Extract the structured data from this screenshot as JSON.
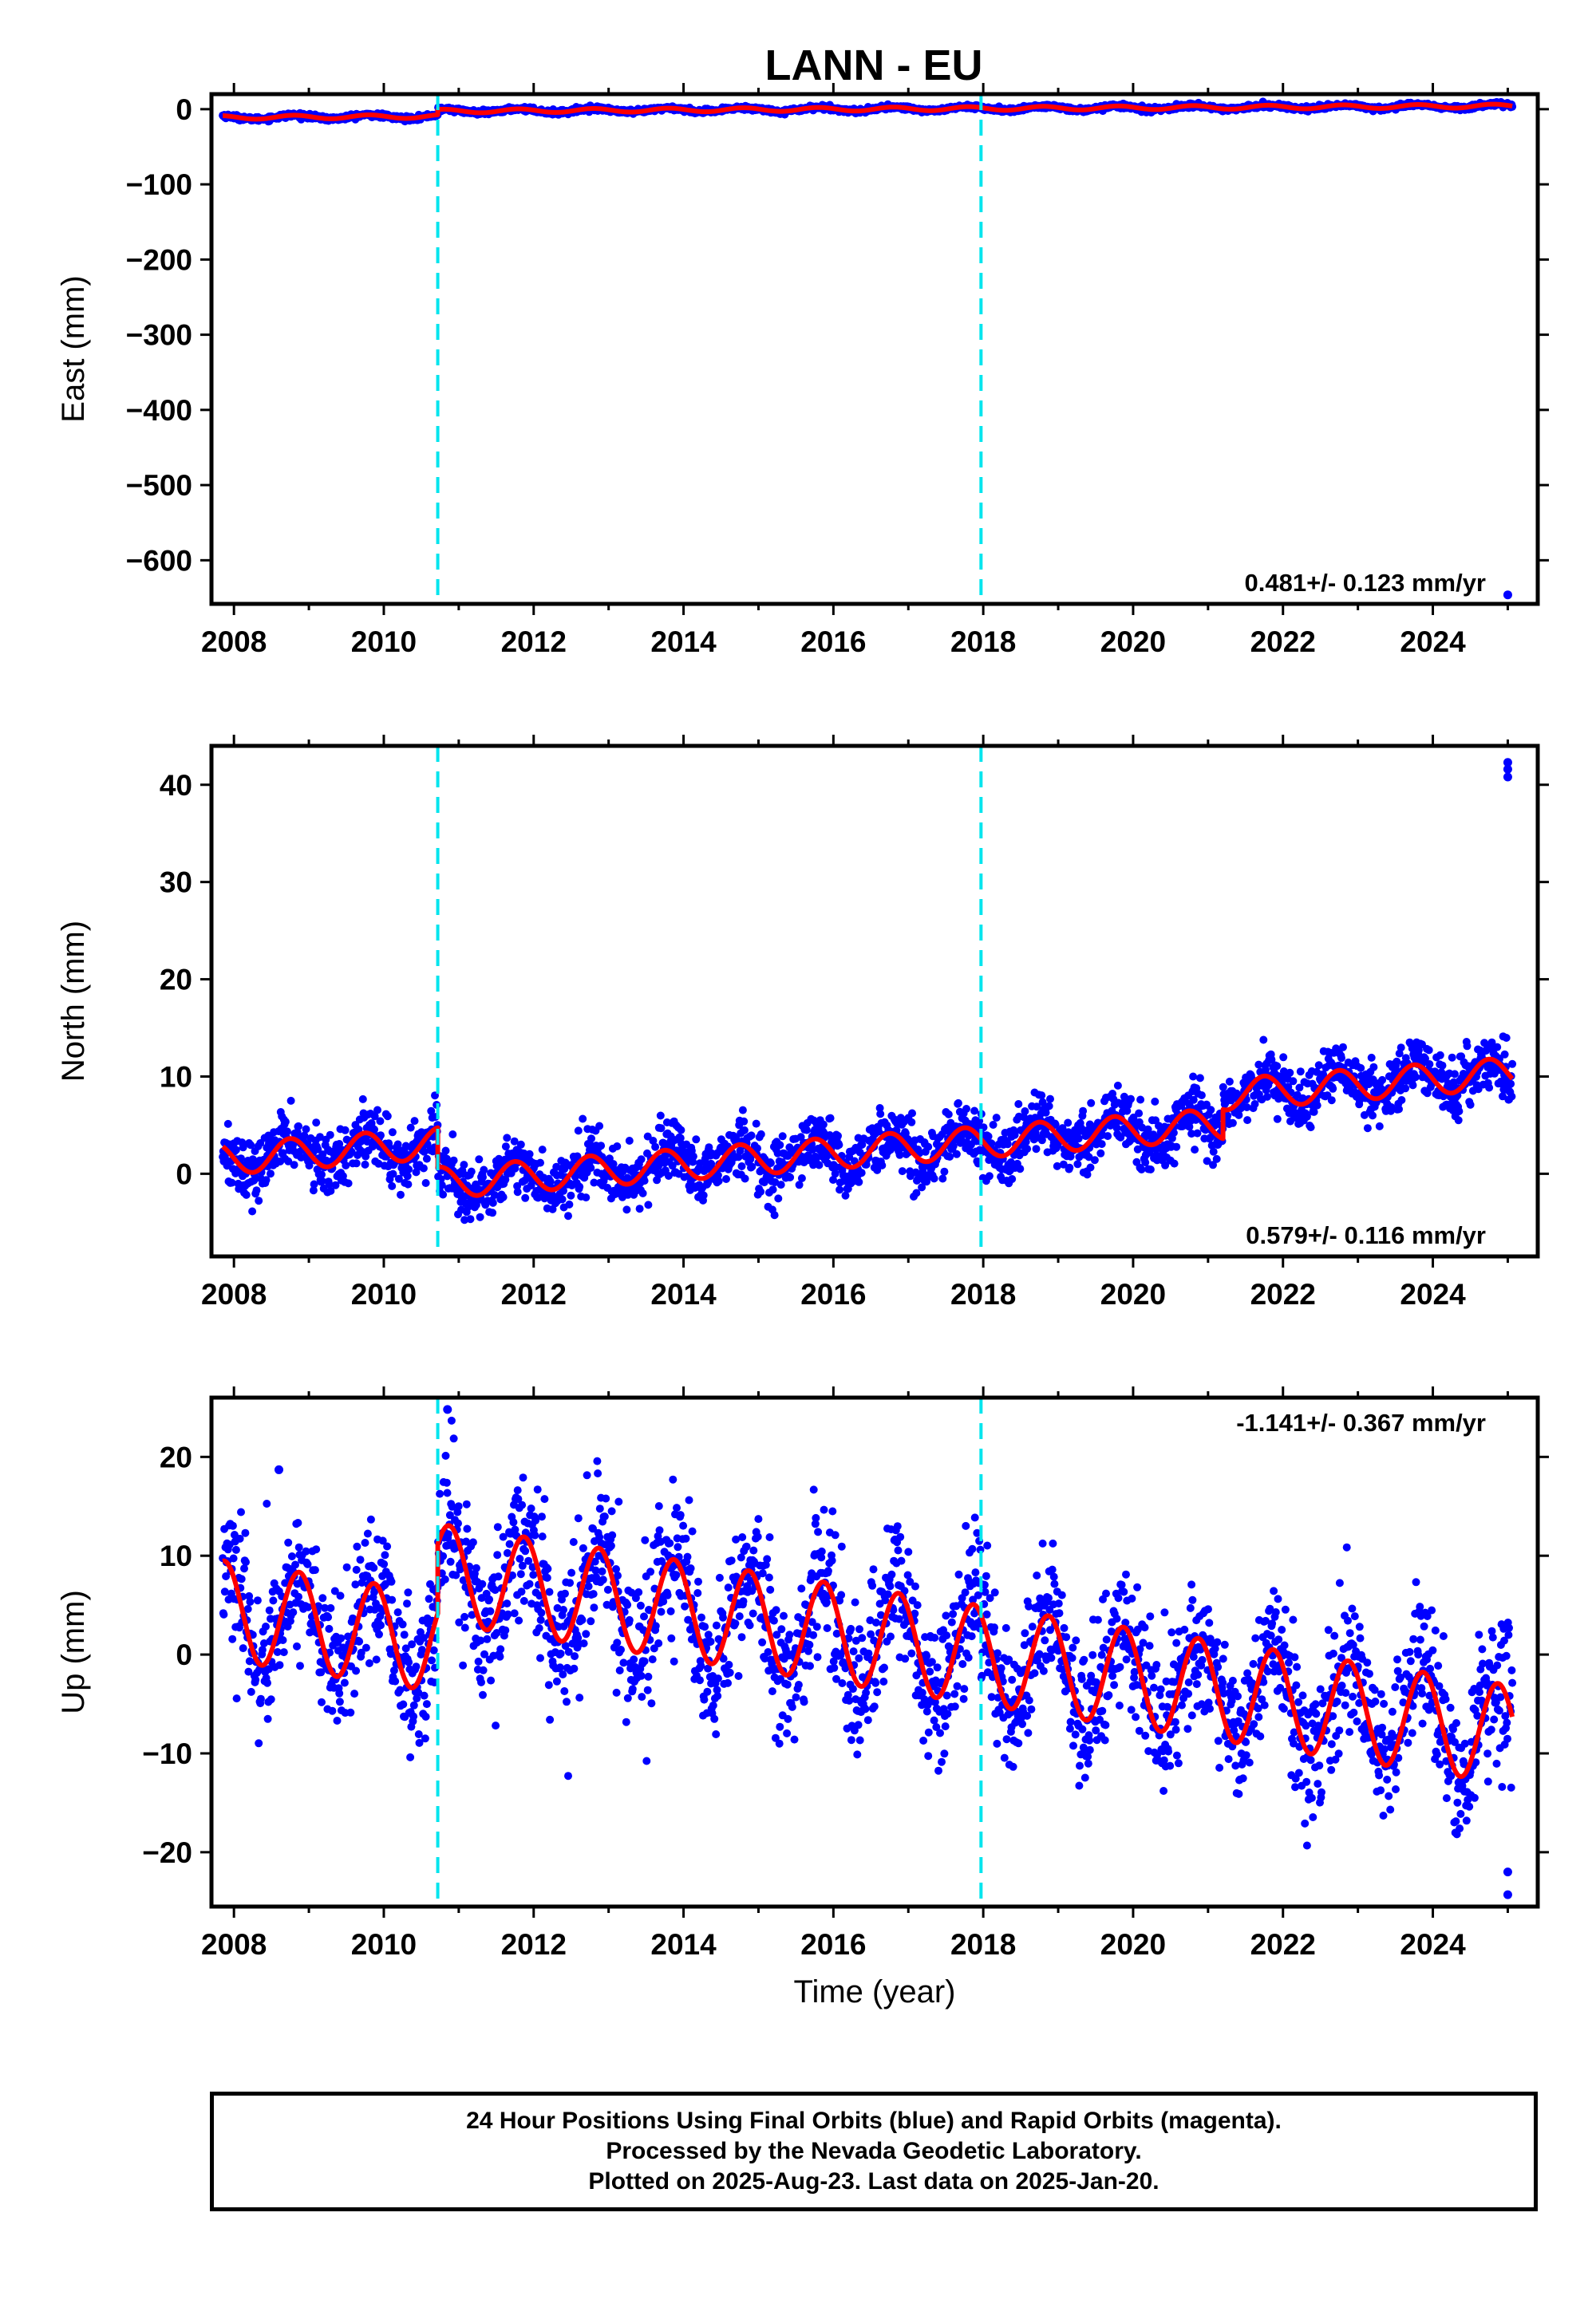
{
  "title": "LANN - EU",
  "footer": {
    "line1": "24 Hour Positions Using Final Orbits (blue) and Rapid Orbits (magenta).",
    "line2": "Processed by the Nevada Geodetic Laboratory.",
    "line3": "Plotted on 2025-Aug-23. Last data on 2025-Jan-20."
  },
  "colors": {
    "points": "#0000ff",
    "model": "#ff0000",
    "breaks": "#00e5ee",
    "axis": "#000000"
  },
  "chart_data": [
    {
      "type": "scatter",
      "component": "east",
      "ylabel": "East (mm)",
      "xlabel": "",
      "xlim": [
        2007.7,
        2025.4
      ],
      "ylim": [
        -658,
        20
      ],
      "x_ticks": [
        2008,
        2010,
        2012,
        2014,
        2016,
        2018,
        2020,
        2022,
        2024
      ],
      "y_ticks": [
        0,
        -100,
        -200,
        -300,
        -400,
        -500,
        -600
      ],
      "breaks": [
        2010.72,
        2017.97
      ],
      "rate_label": "0.481+/- 0.123 mm/yr",
      "rate_position": "bottom-right",
      "model": {
        "segments": [
          {
            "start": 2007.85,
            "end": 2010.72,
            "offset": -11
          },
          {
            "start": 2010.72,
            "end": 2025.06,
            "offset": -4
          }
        ],
        "rate": 0.481,
        "annual_amp": 2.5,
        "annual_phase": 0.55,
        "noise": 1.5
      },
      "outliers": [
        {
          "x": 2025.0,
          "y": -646
        }
      ]
    },
    {
      "type": "scatter",
      "component": "north",
      "ylabel": "North (mm)",
      "xlabel": "",
      "xlim": [
        2007.7,
        2025.4
      ],
      "ylim": [
        -8.5,
        44
      ],
      "x_ticks": [
        2008,
        2010,
        2012,
        2014,
        2016,
        2018,
        2020,
        2022,
        2024
      ],
      "y_ticks": [
        0,
        10,
        20,
        30,
        40
      ],
      "breaks": [
        2010.72,
        2017.97
      ],
      "rate_label": "0.579+/- 0.116 mm/yr",
      "rate_position": "bottom-right",
      "model": {
        "segments": [
          {
            "start": 2007.85,
            "end": 2010.72,
            "offset": 1.5
          },
          {
            "start": 2010.72,
            "end": 2021.2,
            "offset": -2.6
          },
          {
            "start": 2021.2,
            "end": 2025.06,
            "offset": 0.4
          }
        ],
        "rate": 0.579,
        "annual_amp": 1.6,
        "annual_phase": 0.5,
        "noise": 1.5
      },
      "outliers": [
        {
          "x": 2025.0,
          "y": 42.3
        },
        {
          "x": 2025.0,
          "y": 41.6
        },
        {
          "x": 2025.0,
          "y": 40.8
        }
      ]
    },
    {
      "type": "scatter",
      "component": "up",
      "ylabel": "Up (mm)",
      "xlabel": "Time (year)",
      "xlim": [
        2007.7,
        2025.4
      ],
      "ylim": [
        -25.5,
        26
      ],
      "x_ticks": [
        2008,
        2010,
        2012,
        2014,
        2016,
        2018,
        2020,
        2022,
        2024
      ],
      "y_ticks": [
        20,
        10,
        0,
        -10,
        -20
      ],
      "breaks": [
        2010.72,
        2017.97
      ],
      "rate_label": "-1.141+/- 0.367 mm/yr",
      "rate_position": "top-right",
      "model": {
        "segments": [
          {
            "start": 2007.85,
            "end": 2010.72,
            "offset": 4.5
          },
          {
            "start": 2010.72,
            "end": 2025.06,
            "offset": 11.5
          }
        ],
        "rate": -1.141,
        "annual_amp": 5.0,
        "annual_phase": 0.62,
        "noise": 3.6
      },
      "outliers": [
        {
          "x": 2010.85,
          "y": 24.8
        },
        {
          "x": 2008.6,
          "y": 18.7
        },
        {
          "x": 2025.0,
          "y": -24.3
        },
        {
          "x": 2025.0,
          "y": -22.0
        }
      ]
    }
  ]
}
